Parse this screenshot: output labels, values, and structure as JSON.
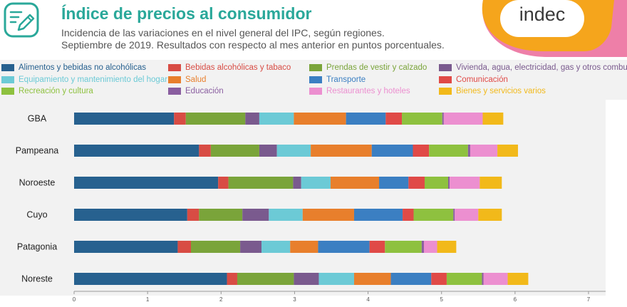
{
  "header": {
    "title": "Índice de precios al consumidor",
    "subtitle_line1": "Incidencia de las variaciones en el nivel general del IPC, según regiones.",
    "subtitle_line2": "Septiembre de 2019. Resultados con respecto al mes anterior en puntos porcentuales.",
    "brand": "indec",
    "icon": "pencil-square-icon"
  },
  "colors": {
    "title": "#2aa89a",
    "brand_orange": "#f5a51c",
    "brand_pink": "#ee7fa8"
  },
  "chart_data": {
    "type": "bar",
    "orientation": "horizontal",
    "stacked": true,
    "categories": [
      "GBA",
      "Pampeana",
      "Noroeste",
      "Cuyo",
      "Patagonia",
      "Noreste"
    ],
    "xlim": [
      0,
      7
    ],
    "xticks": [
      "0",
      "1",
      "2",
      "3",
      "4",
      "5",
      "6",
      "7"
    ],
    "legend_position": "top",
    "series": [
      {
        "name": "Alimentos y bebidas no alcohólicas",
        "color": "#27618f",
        "values": [
          1.36,
          1.7,
          1.96,
          1.54,
          1.41,
          2.08
        ]
      },
      {
        "name": "Bebidas alcohólicas y tabaco",
        "color": "#d84c44",
        "values": [
          0.16,
          0.16,
          0.14,
          0.16,
          0.18,
          0.14
        ]
      },
      {
        "name": "Prendas de vestir y calzado",
        "color": "#7aa43a",
        "values": [
          0.81,
          0.66,
          0.88,
          0.59,
          0.67,
          0.77
        ]
      },
      {
        "name": "Vivienda, agua, electricidad, gas y otros combustibles",
        "color": "#7a5a8e",
        "values": [
          0.19,
          0.24,
          0.11,
          0.36,
          0.29,
          0.34
        ]
      },
      {
        "name": "Equipamiento y mantenimiento del hogar",
        "color": "#6ccad6",
        "values": [
          0.47,
          0.46,
          0.4,
          0.46,
          0.39,
          0.48
        ]
      },
      {
        "name": "Salud",
        "color": "#e87f2c",
        "values": [
          0.71,
          0.83,
          0.66,
          0.7,
          0.38,
          0.5
        ]
      },
      {
        "name": "Transporte",
        "color": "#3b7fc2",
        "values": [
          0.54,
          0.56,
          0.4,
          0.66,
          0.7,
          0.55
        ]
      },
      {
        "name": "Comunicación",
        "color": "#e04a47",
        "values": [
          0.22,
          0.22,
          0.22,
          0.15,
          0.21,
          0.21
        ]
      },
      {
        "name": "Recreación y cultura",
        "color": "#8ec13f",
        "values": [
          0.55,
          0.53,
          0.32,
          0.54,
          0.5,
          0.48
        ]
      },
      {
        "name": "Educación",
        "color": "#8a5ea0",
        "values": [
          0.02,
          0.03,
          0.02,
          0.02,
          0.03,
          0.02
        ]
      },
      {
        "name": "Restaurantes y hoteles",
        "color": "#ec8fd0",
        "values": [
          0.53,
          0.37,
          0.41,
          0.32,
          0.18,
          0.33
        ]
      },
      {
        "name": "Bienes y servicios varios",
        "color": "#f2b91a",
        "values": [
          0.28,
          0.28,
          0.3,
          0.32,
          0.26,
          0.28
        ]
      }
    ]
  }
}
